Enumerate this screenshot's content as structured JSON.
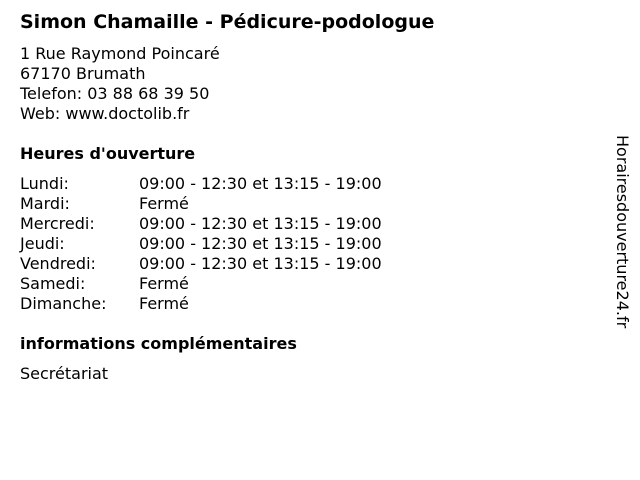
{
  "business": {
    "name": "Simon Chamaille - Pédicure-podologue",
    "address_line1": "1 Rue Raymond Poincaré",
    "address_line2": "67170 Brumath",
    "phone": "Telefon: 03 88 68 39 50",
    "web": "Web: www.doctolib.fr"
  },
  "hours": {
    "heading": "Heures d'ouverture",
    "rows": [
      {
        "day": "Lundi:",
        "value": "09:00 - 12:30 et 13:15 - 19:00"
      },
      {
        "day": "Mardi:",
        "value": "Fermé"
      },
      {
        "day": "Mercredi:",
        "value": "09:00 - 12:30 et 13:15 - 19:00"
      },
      {
        "day": "Jeudi:",
        "value": "09:00 - 12:30 et 13:15 - 19:00"
      },
      {
        "day": "Vendredi:",
        "value": "09:00 - 12:30 et 13:15 - 19:00"
      },
      {
        "day": "Samedi:",
        "value": "Fermé"
      },
      {
        "day": "Dimanche:",
        "value": "Fermé"
      }
    ]
  },
  "info": {
    "heading": "informations complémentaires",
    "text": "Secrétariat"
  },
  "watermark": "Horairesdouverture24.fr"
}
